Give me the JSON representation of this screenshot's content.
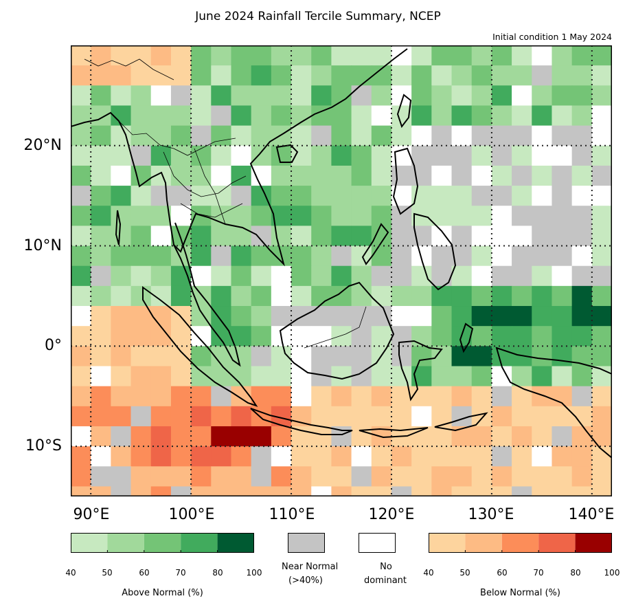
{
  "title": "June 2024 Rainfall Tercile Summary, NCEP",
  "subtitle": "Initial condition 1 May 2024",
  "map": {
    "lat_labels": [
      "20°N",
      "10°N",
      "0°",
      "10°S"
    ],
    "lon_labels": [
      "90°E",
      "100°E",
      "110°E",
      "120°E",
      "130°E",
      "140°E"
    ],
    "colors": {
      "above": [
        "#c7e9c0",
        "#a1d99b",
        "#74c476",
        "#41ab5d",
        "#005a32"
      ],
      "below": [
        "#fdd49e",
        "#fdbb84",
        "#fc8d59",
        "#ef6548",
        "#990000"
      ],
      "near_normal": "#c4c4c4",
      "no_dominant": "#ffffff",
      "coastline": "#000000"
    }
  },
  "legend": {
    "above": {
      "title": "Above Normal (%)",
      "ticks": [
        "40",
        "50",
        "60",
        "70",
        "80",
        "100"
      ]
    },
    "near_normal": {
      "label_line1": "Near Normal",
      "label_line2": "(>40%)"
    },
    "no_dominant": {
      "label_line1": "No",
      "label_line2": "dominant"
    },
    "below": {
      "title": "Below Normal (%)",
      "ticks": [
        "40",
        "50",
        "60",
        "70",
        "80",
        "100"
      ]
    }
  }
}
